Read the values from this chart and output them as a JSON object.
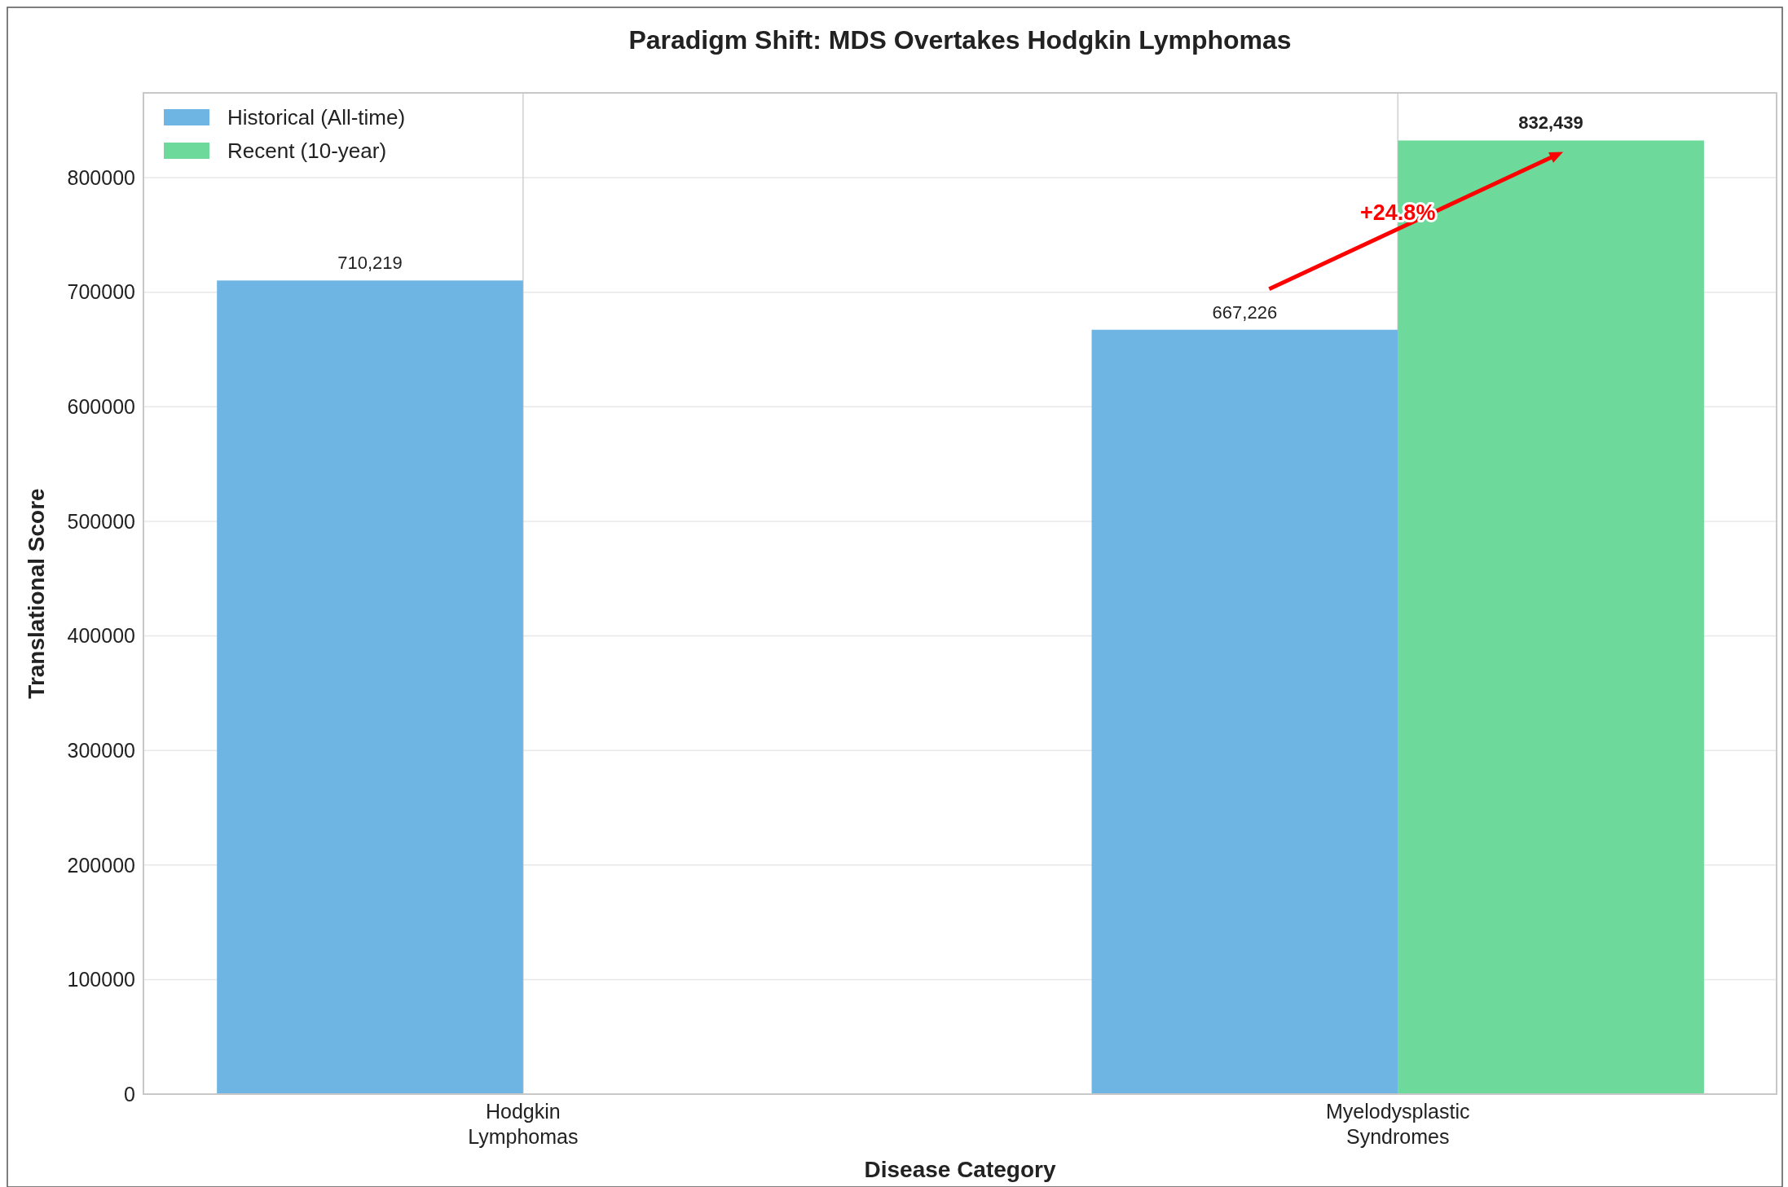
{
  "chart_data": {
    "type": "bar",
    "title": "Paradigm Shift: MDS Overtakes Hodgkin Lymphomas",
    "xlabel": "Disease Category",
    "ylabel": "Translational Score",
    "categories": [
      "Hodgkin Lymphomas",
      "Myelodysplastic Syndromes"
    ],
    "series": [
      {
        "name": "Historical (All-time)",
        "color": "#6fb5e3",
        "values": [
          710219,
          667226
        ],
        "value_labels": [
          "710,219",
          "667,226"
        ]
      },
      {
        "name": "Recent (10-year)",
        "color": "#6dd99a",
        "values": [
          null,
          832439
        ],
        "value_labels": [
          null,
          "832,439"
        ]
      }
    ],
    "ylim": [
      0,
      874000
    ],
    "yticks": [
      0,
      100000,
      200000,
      300000,
      400000,
      500000,
      600000,
      700000,
      800000
    ],
    "grid": true,
    "legend": "top left",
    "annotations": [
      {
        "text": "+24.8%",
        "x": "Myelodysplastic Syndromes",
        "y": 770000
      }
    ]
  }
}
